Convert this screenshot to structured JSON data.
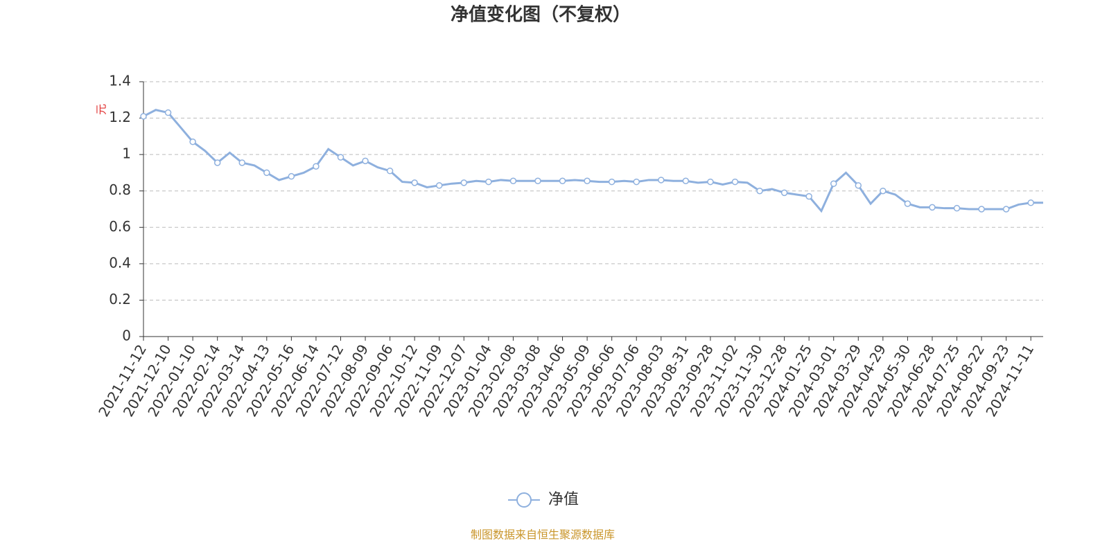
{
  "chart_data": {
    "type": "line",
    "title": "净值变化图（不复权）",
    "y_label": "元",
    "source": "制图数据来自恒生聚源数据库",
    "categories": [
      "2021-11-12",
      null,
      "2021-12-10",
      null,
      "2022-01-10",
      null,
      "2022-02-14",
      null,
      "2022-03-14",
      null,
      "2022-04-13",
      null,
      "2022-05-16",
      null,
      "2022-06-14",
      null,
      "2022-07-12",
      null,
      "2022-08-09",
      null,
      "2022-09-06",
      null,
      "2022-10-12",
      null,
      "2022-11-09",
      null,
      "2022-12-07",
      null,
      "2023-01-04",
      null,
      "2023-02-08",
      null,
      "2023-03-08",
      null,
      "2023-04-06",
      null,
      "2023-05-09",
      null,
      "2023-06-06",
      null,
      "2023-07-06",
      null,
      "2023-08-03",
      null,
      "2023-08-31",
      null,
      "2023-09-28",
      null,
      "2023-11-02",
      null,
      "2023-11-30",
      null,
      "2023-12-28",
      null,
      "2024-01-25",
      null,
      "2024-03-01",
      null,
      "2024-03-29",
      null,
      "2024-04-29",
      null,
      "2024-05-30",
      null,
      "2024-06-28",
      null,
      "2024-07-25",
      null,
      "2024-08-22",
      null,
      "2024-09-23",
      null,
      "2024-11-11",
      null
    ],
    "series": [
      {
        "name": "净值",
        "color": "#8eb0de",
        "values": [
          1.21,
          1.245,
          1.23,
          1.15,
          1.07,
          1.02,
          0.955,
          1.01,
          0.955,
          0.94,
          0.9,
          0.86,
          0.88,
          0.9,
          0.935,
          1.03,
          0.985,
          0.94,
          0.965,
          0.93,
          0.91,
          0.85,
          0.845,
          0.82,
          0.83,
          0.84,
          0.845,
          0.855,
          0.85,
          0.86,
          0.855,
          0.855,
          0.855,
          0.855,
          0.855,
          0.86,
          0.855,
          0.85,
          0.85,
          0.855,
          0.85,
          0.86,
          0.86,
          0.855,
          0.855,
          0.845,
          0.85,
          0.835,
          0.85,
          0.845,
          0.8,
          0.81,
          0.79,
          0.78,
          0.77,
          0.69,
          0.84,
          0.9,
          0.83,
          0.73,
          0.8,
          0.78,
          0.73,
          0.71,
          0.71,
          0.705,
          0.705,
          0.7,
          0.7,
          0.7,
          0.7,
          0.725,
          0.735,
          0.735
        ]
      }
    ],
    "ylim": [
      0,
      1.4
    ],
    "yticks": [
      0,
      0.2,
      0.4,
      0.6,
      0.8,
      1,
      1.2,
      1.4
    ],
    "grid": true,
    "legend": "bottom"
  }
}
